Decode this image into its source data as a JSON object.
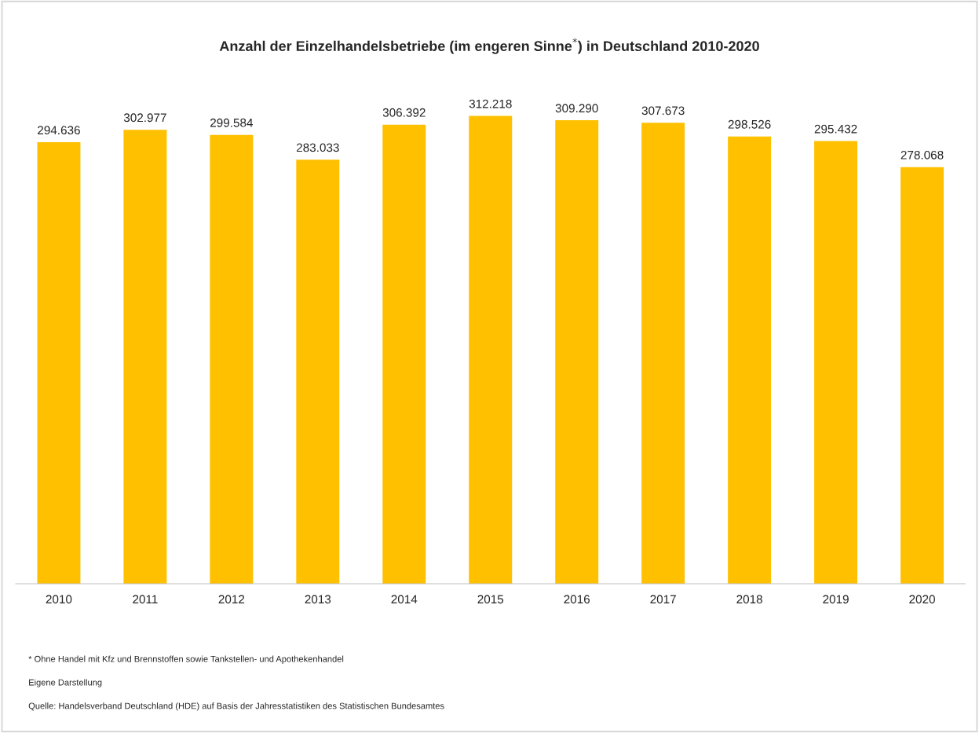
{
  "chart_data": {
    "type": "bar",
    "title": "Anzahl der Einzelhandelsbetriebe (im engeren Sinne$^{*}$) in Deutschland 2010-2020",
    "categories": [
      "2010",
      "2011",
      "2012",
      "2013",
      "2014",
      "2015",
      "2016",
      "2017",
      "2018",
      "2019",
      "2020"
    ],
    "values": [
      294636,
      302977,
      299584,
      283033,
      306392,
      312218,
      309290,
      307673,
      298526,
      295432,
      278068
    ],
    "value_labels": [
      "294.636",
      "302.977",
      "299.584",
      "283.033",
      "306.392",
      "312.218",
      "309.290",
      "307.673",
      "298.526",
      "295.432",
      "278.068"
    ],
    "color": "#ffc000",
    "grid": false,
    "legend": false,
    "annotations": [
      "* Ohne Handel mit Kfz und Brennstoffen sowie Tankstellen- und Apothekenhandel",
      "Eigene Darstellung",
      "Quelle: Handelsverband Deutschland (HDE) auf Basis der Jahresstatistiken des Statistischen Bundesamtes"
    ]
  }
}
